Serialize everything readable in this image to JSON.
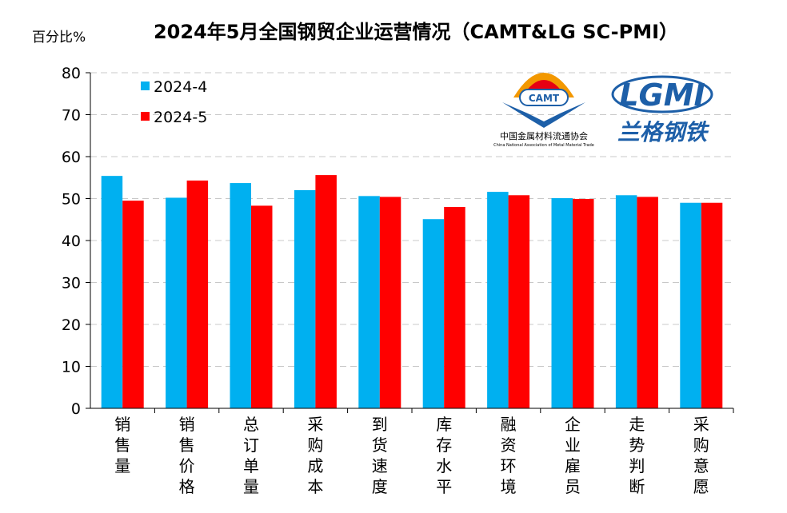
{
  "chart_data": {
    "type": "bar",
    "title": "2024年5月全国钢贸企业运营情况（CAMT&LG SC-PMI）",
    "ylabel": "百分比%",
    "xlabel": "",
    "ylim": [
      0,
      80
    ],
    "yticks": [
      0,
      10,
      20,
      30,
      40,
      50,
      60,
      70,
      80
    ],
    "grid": "horizontal dashed",
    "legend_position": "top-left",
    "categories": [
      "销售量",
      "销售价格",
      "总订单量",
      "采购成本",
      "到货速度",
      "库存水平",
      "融资环境",
      "企业雇员",
      "走势判断",
      "采购意愿"
    ],
    "series": [
      {
        "name": "2024-4",
        "color": "#00B0F0",
        "values": [
          55.4,
          50.2,
          53.7,
          52.0,
          50.6,
          45.1,
          51.6,
          50.1,
          50.8,
          49.0
        ]
      },
      {
        "name": "2024-5",
        "color": "#FF0000",
        "values": [
          49.5,
          54.3,
          48.3,
          55.6,
          50.4,
          48.0,
          50.8,
          49.9,
          50.4,
          49.0
        ]
      }
    ]
  },
  "logos": {
    "camt_badge": "CAMT",
    "camt_name": "中国金属材料流通协会",
    "camt_english": "China National Association of Metal Material Trade",
    "lgmi_badge": "LGMI",
    "lgmi_name": "兰格钢铁"
  }
}
